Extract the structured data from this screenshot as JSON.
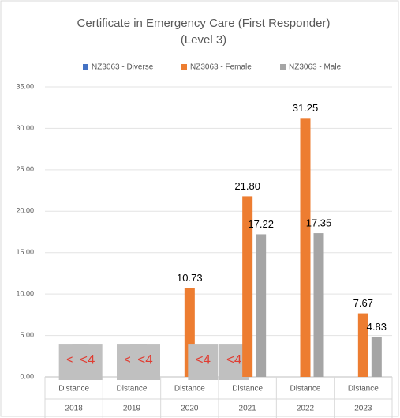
{
  "chart_data": {
    "type": "bar",
    "title": "Certificate in Emergency Care (First Responder)",
    "subtitle": "(Level 3)",
    "categories": [
      "Distance",
      "Distance",
      "Distance",
      "Distance",
      "Distance",
      "Distance"
    ],
    "x_groups": [
      "2018",
      "2019",
      "2020",
      "2021",
      "2022",
      "2023"
    ],
    "series": [
      {
        "name": "NZ3063 - Diverse",
        "color": "#4472c4",
        "values": [
          null,
          null,
          null,
          null,
          null,
          null
        ],
        "value_labels": [
          null,
          null,
          null,
          "<4",
          null,
          null
        ]
      },
      {
        "name": "NZ3063 - Female",
        "color": "#ed7d31",
        "values": [
          null,
          null,
          10.73,
          21.8,
          31.25,
          7.67
        ],
        "value_labels": [
          "<4",
          "<4",
          "10.73",
          "21.80",
          "31.25",
          "7.67"
        ]
      },
      {
        "name": "NZ3063 - Male",
        "color": "#a5a5a5",
        "values": [
          null,
          null,
          null,
          17.22,
          17.35,
          4.83
        ],
        "value_labels": [
          "<4",
          "<4",
          "<4",
          "17.22",
          "17.35",
          "4.83"
        ]
      }
    ],
    "ylim": [
      0,
      35
    ],
    "yticks": [
      {
        "value": 0,
        "label": "0.00"
      },
      {
        "value": 5,
        "label": "5.00"
      },
      {
        "value": 10,
        "label": "10.00"
      },
      {
        "value": 15,
        "label": "15.00"
      },
      {
        "value": 20,
        "label": "20.00"
      },
      {
        "value": 25,
        "label": "25.00"
      },
      {
        "value": 30,
        "label": "30.00"
      },
      {
        "value": 35,
        "label": "35.00"
      }
    ],
    "grid": true,
    "legend": "top"
  }
}
